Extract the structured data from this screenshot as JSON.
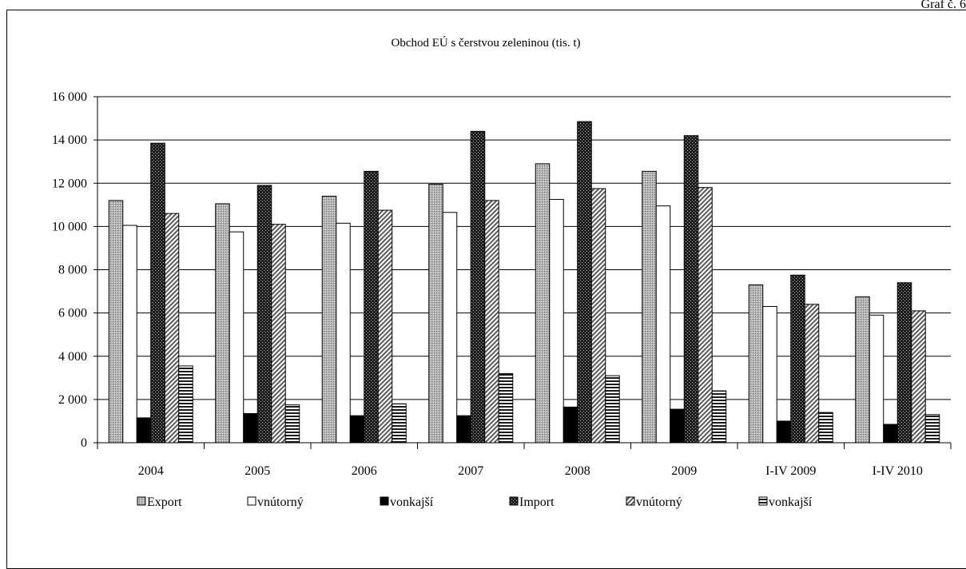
{
  "header": {
    "corner_label": "Graf č. 6"
  },
  "chart_data": {
    "type": "bar",
    "title": "Obchod EÚ s čerstvou zeleninou (tis. t)",
    "xlabel": "",
    "ylabel": "",
    "ylim": [
      0,
      16000
    ],
    "yticks": [
      0,
      2000,
      4000,
      6000,
      8000,
      10000,
      12000,
      14000,
      16000
    ],
    "ytick_labels": [
      "0",
      "2 000",
      "4 000",
      "6 000",
      "8 000",
      "10 000",
      "12 000",
      "14 000",
      "16 000"
    ],
    "grid": true,
    "legend_position": "bottom",
    "categories": [
      "2004",
      "2005",
      "2006",
      "2007",
      "2008",
      "2009",
      "I-IV  2009",
      "I-IV  2010"
    ],
    "series": [
      {
        "name": "Export",
        "pattern": "gray-dots",
        "values": [
          11200,
          11050,
          11400,
          11950,
          12900,
          12550,
          7300,
          6750
        ]
      },
      {
        "name": "vnútorný",
        "pattern": "white",
        "values": [
          10050,
          9750,
          10150,
          10650,
          11250,
          10950,
          6300,
          5900
        ]
      },
      {
        "name": "vonkajší",
        "pattern": "black",
        "values": [
          1150,
          1350,
          1250,
          1250,
          1650,
          1550,
          1000,
          850
        ]
      },
      {
        "name": "Import",
        "pattern": "black-dots",
        "values": [
          13850,
          11900,
          12550,
          14400,
          14850,
          14200,
          7750,
          7400
        ]
      },
      {
        "name": "vnútorný",
        "pattern": "diagonal-stripes",
        "values": [
          10600,
          10100,
          10750,
          11200,
          11750,
          11800,
          6400,
          6100
        ]
      },
      {
        "name": "vonkajší",
        "pattern": "horizontal-stripes",
        "values": [
          3550,
          1750,
          1800,
          3200,
          3100,
          2400,
          1400,
          1300
        ]
      }
    ]
  }
}
